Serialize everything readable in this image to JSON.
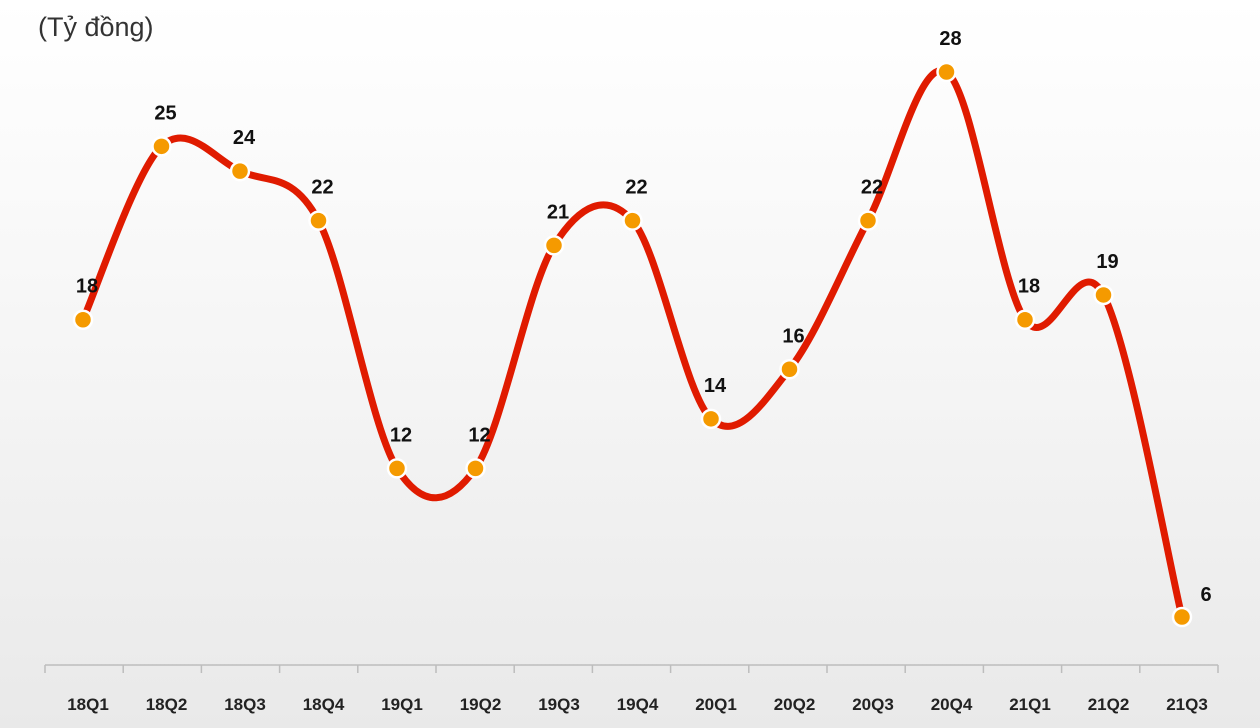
{
  "chart_data": {
    "type": "line",
    "title": "",
    "unit_label": "(Tỷ đồng)",
    "xlabel": "",
    "ylabel": "",
    "categories": [
      "18Q1",
      "18Q2",
      "18Q3",
      "18Q4",
      "19Q1",
      "19Q2",
      "19Q3",
      "19Q4",
      "20Q1",
      "20Q2",
      "20Q3",
      "20Q4",
      "21Q1",
      "21Q2",
      "21Q3"
    ],
    "values": [
      18,
      25,
      24,
      22,
      12,
      12,
      21,
      22,
      14,
      16,
      22,
      28,
      18,
      19,
      6
    ],
    "data_labels": [
      "18",
      "25",
      "24",
      "22",
      "12",
      "12",
      "21",
      "22",
      "14",
      "16",
      "22",
      "28",
      "18",
      "19",
      "6"
    ],
    "ylim": [
      0,
      30
    ],
    "smooth": true,
    "grid": false,
    "legend": "none",
    "colors": {
      "line": "#e01b00",
      "marker_fill": "#f59a00",
      "marker_stroke": "#ffffff",
      "axis": "#bdbdbd"
    }
  }
}
